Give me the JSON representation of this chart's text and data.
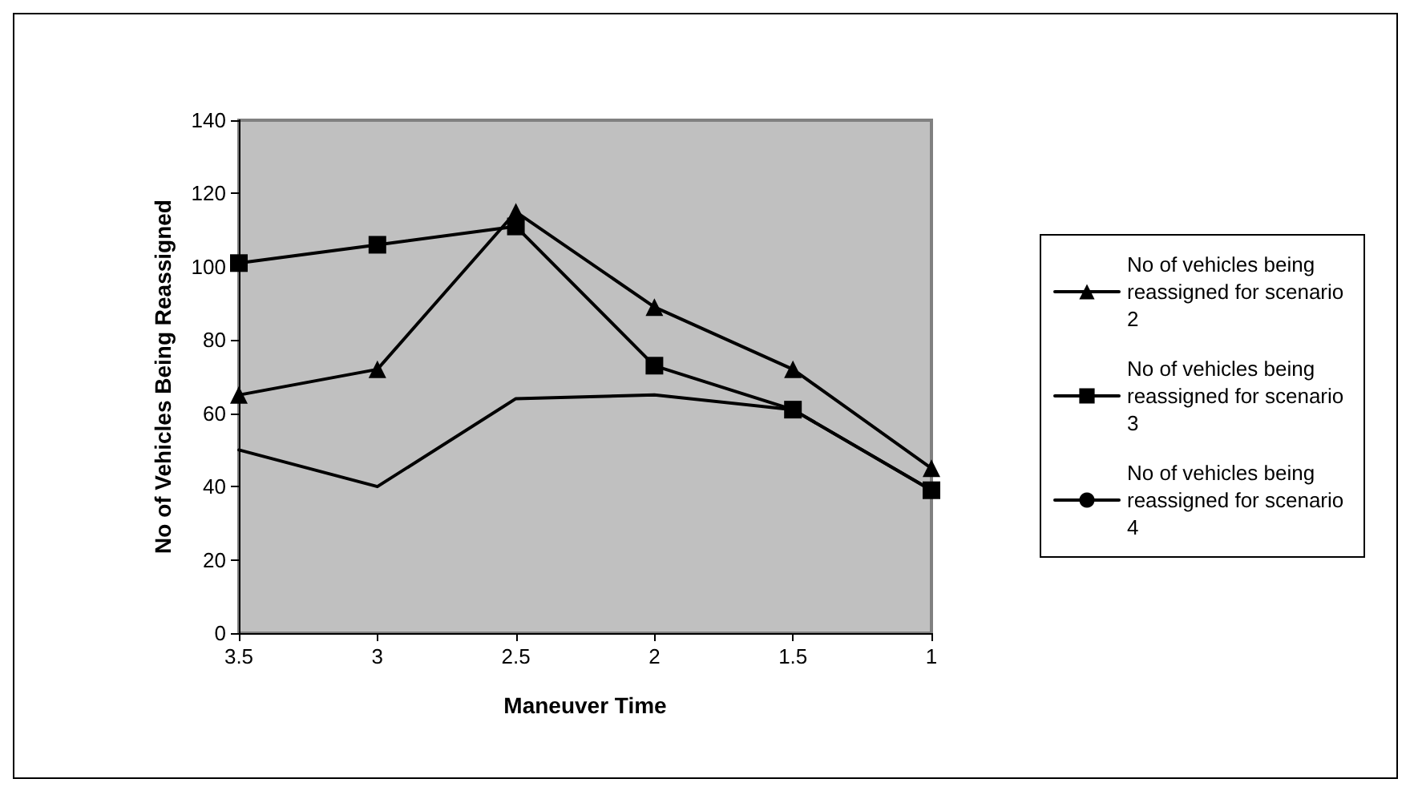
{
  "chart_data": {
    "type": "line",
    "xlabel": "Maneuver Time",
    "ylabel": "No of Vehicles Being Reassigned",
    "categories": [
      "3.5",
      "3",
      "2.5",
      "2",
      "1.5",
      "1"
    ],
    "series": [
      {
        "name": "No of vehicles being reassigned for scenario 2",
        "color": "#000000",
        "marker": "triangle",
        "values": [
          65,
          72,
          115,
          89,
          72,
          45
        ]
      },
      {
        "name": "No of vehicles being reassigned for scenario 3",
        "color": "#000000",
        "marker": "square",
        "values": [
          101,
          106,
          111,
          73,
          61,
          39
        ]
      },
      {
        "name": "No of vehicles being reassigned for scenario 4",
        "color": "#000000",
        "marker": "none",
        "values": [
          50,
          40,
          64,
          65,
          61,
          39
        ]
      }
    ],
    "ylim": [
      0,
      140
    ],
    "yticks": [
      0,
      20,
      40,
      60,
      80,
      100,
      120,
      140
    ],
    "grid": false,
    "legend": "right",
    "line_style": "solid"
  }
}
